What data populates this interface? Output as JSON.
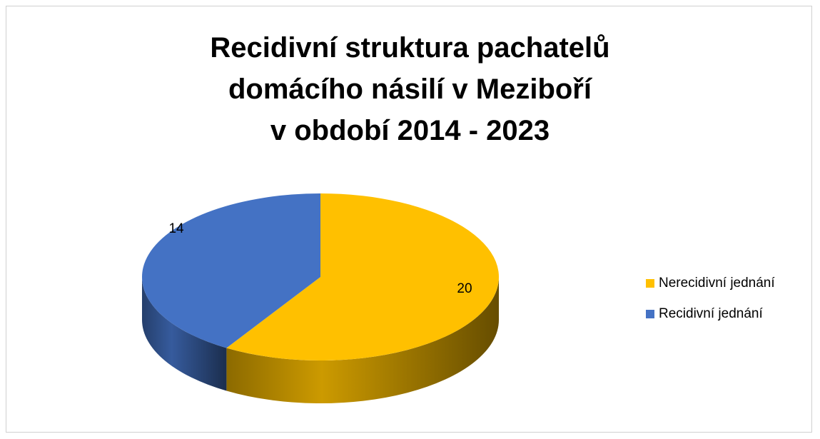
{
  "chart_data": {
    "type": "pie",
    "title": "Recidivní struktura pachatelů\ndomácího násilí v Meziboří\nv období 2014 - 2023",
    "categories": [
      "Nerecidivní jednání",
      "Recidivní jednání"
    ],
    "values": [
      20,
      14
    ],
    "colors": [
      "#FFC000",
      "#4472C4"
    ],
    "legend": "right"
  }
}
